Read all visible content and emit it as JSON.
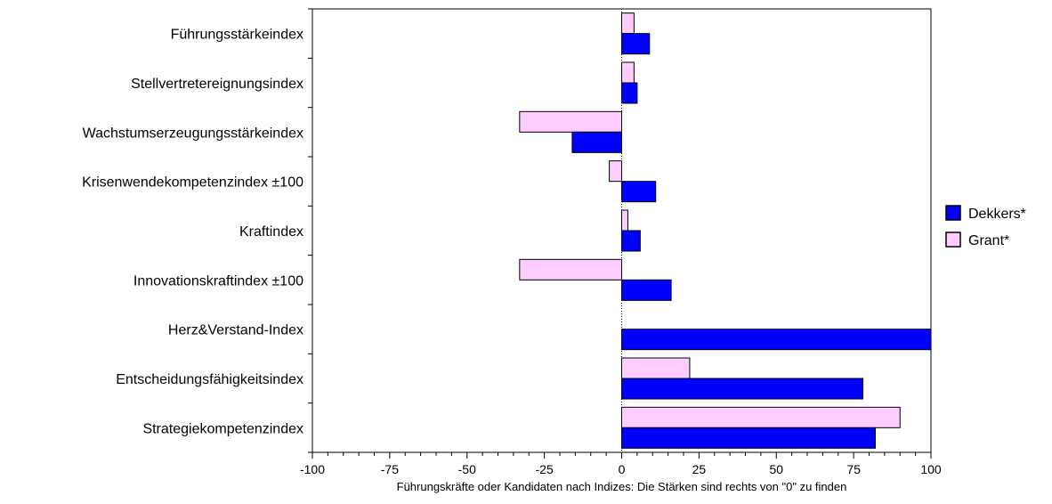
{
  "chart_data": {
    "type": "bar",
    "orientation": "horizontal",
    "title": "",
    "xlabel": "Führungskräfte oder Kandidaten nach Indizes: Die Stärken sind rechts von \"0\" zu finden",
    "ylabel": "",
    "xlim": [
      -100,
      100
    ],
    "xticks": [
      -100,
      -75,
      -50,
      -25,
      0,
      25,
      50,
      75,
      100
    ],
    "xtick_labels": [
      "-100",
      "-75",
      "-50",
      "-25",
      "0",
      "25",
      "50",
      "75",
      "100"
    ],
    "grid": false,
    "legend_position": "right",
    "categories": [
      "Führungsstärkeindex",
      "Stellvertretereignungsindex",
      "Wachstumserzeugungsstärkeindex",
      "Krisenwendekompetenzindex ±100",
      "Kraftindex",
      "Innovationskraftindex ±100",
      "Herz&Verstand-Index",
      "Entscheidungsfähigkeitsindex",
      "Strategiekompetenzindex"
    ],
    "series": [
      {
        "name": "Dekkers*",
        "color": "#0000ff",
        "values": [
          9,
          5,
          -16,
          11,
          6,
          16,
          100,
          78,
          82
        ]
      },
      {
        "name": "Grant*",
        "color": "#ffccff",
        "values": [
          4,
          4,
          -33,
          -4,
          2,
          -33,
          0,
          22,
          90
        ]
      }
    ],
    "series_order_in_group": [
      "Grant*",
      "Dekkers*"
    ],
    "legend": [
      {
        "label": "Dekkers*",
        "color": "#0000ff"
      },
      {
        "label": "Grant*",
        "color": "#ffccff"
      }
    ]
  }
}
